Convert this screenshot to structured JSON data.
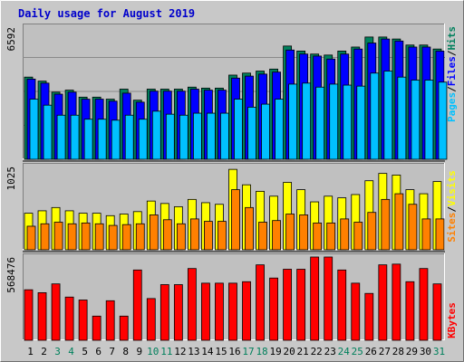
{
  "title": "Daily usage for August 2019",
  "colors": {
    "title": "#0000cc",
    "background": "#c0c0c0",
    "hits": "#00805c",
    "files": "#0000ff",
    "pages": "#00c0ff",
    "visits": "#ffff00",
    "sites": "#ff8000",
    "kbytes": "#ff0000",
    "weekday_label": "#000000",
    "weekend_label": "#00805c",
    "divider": "#000000"
  },
  "side_labels": {
    "pages": "Pages",
    "files": "Files",
    "hits": "Hits",
    "sites": "Sites",
    "visits": "Visits",
    "kbytes": "KBytes",
    "separator": "/"
  },
  "chart_data": {
    "type": "bar",
    "title": "Daily usage for August 2019",
    "x": [
      "1",
      "2",
      "3",
      "4",
      "5",
      "6",
      "7",
      "8",
      "9",
      "10",
      "11",
      "12",
      "13",
      "14",
      "15",
      "16",
      "17",
      "18",
      "19",
      "20",
      "21",
      "22",
      "23",
      "24",
      "25",
      "26",
      "27",
      "28",
      "29",
      "30",
      "31"
    ],
    "weekend_days": [
      "3",
      "4",
      "10",
      "11",
      "17",
      "18",
      "24",
      "25",
      "31"
    ],
    "panels": [
      {
        "name": "hits-files-pages",
        "max_label": "6592",
        "ylim": [
          0,
          6592
        ],
        "series": [
          {
            "name": "Hits",
            "color": "#00805c",
            "values": [
              4100,
              3900,
              3350,
              3450,
              3100,
              3100,
              3000,
              3500,
              2950,
              3500,
              3500,
              3500,
              3600,
              3550,
              3550,
              4200,
              4300,
              4400,
              4500,
              5650,
              5400,
              5250,
              5200,
              5400,
              5600,
              6100,
              6100,
              6000,
              5700,
              5700,
              5500
            ]
          },
          {
            "name": "Files",
            "color": "#0000ff",
            "values": [
              4000,
              3800,
              3250,
              3350,
              3000,
              3000,
              2900,
              3300,
              2850,
              3400,
              3400,
              3400,
              3500,
              3450,
              3450,
              4050,
              4150,
              4250,
              4350,
              5450,
              5250,
              5150,
              5000,
              5250,
              5500,
              5800,
              6000,
              5900,
              5600,
              5600,
              5400
            ]
          },
          {
            "name": "Pages",
            "color": "#00c0ff",
            "values": [
              3000,
              2700,
              2200,
              2200,
              2000,
              2000,
              1950,
              2200,
              2000,
              2400,
              2250,
              2200,
              2300,
              2300,
              2300,
              3000,
              2600,
              2750,
              3000,
              3750,
              3800,
              3600,
              3750,
              3700,
              3650,
              4300,
              4400,
              4100,
              3950,
              3950,
              3850
            ]
          }
        ]
      },
      {
        "name": "visits-sites",
        "max_label": "1025",
        "ylim": [
          0,
          1025
        ],
        "series": [
          {
            "name": "Visits",
            "color": "#ffff00",
            "values": [
              450,
              480,
              520,
              480,
              450,
              450,
              420,
              440,
              470,
              600,
              570,
              530,
              620,
              580,
              560,
              990,
              800,
              720,
              660,
              830,
              740,
              590,
              660,
              640,
              680,
              850,
              940,
              920,
              740,
              690,
              840
            ]
          },
          {
            "name": "Sites",
            "color": "#ff8000",
            "values": [
              290,
              320,
              340,
              320,
              330,
              320,
              300,
              310,
              320,
              430,
              370,
              320,
              380,
              350,
              350,
              740,
              520,
              340,
              360,
              440,
              430,
              330,
              330,
              380,
              340,
              460,
              620,
              690,
              560,
              380,
              380
            ]
          }
        ]
      },
      {
        "name": "kbytes",
        "max_label": "568476",
        "ylim": [
          0,
          568476
        ],
        "series": [
          {
            "name": "KBytes",
            "color": "#ff0000",
            "values": [
              345000,
              325000,
              385000,
              295000,
              275000,
              165000,
              270000,
              165000,
              480000,
              285000,
              380000,
              380000,
              490000,
              390000,
              390000,
              390000,
              400000,
              515000,
              425000,
              485000,
              485000,
              568476,
              568476,
              480000,
              390000,
              320000,
              515000,
              520000,
              400000,
              490000,
              385000
            ]
          }
        ]
      }
    ],
    "xlabel": "",
    "ylabel": ""
  }
}
